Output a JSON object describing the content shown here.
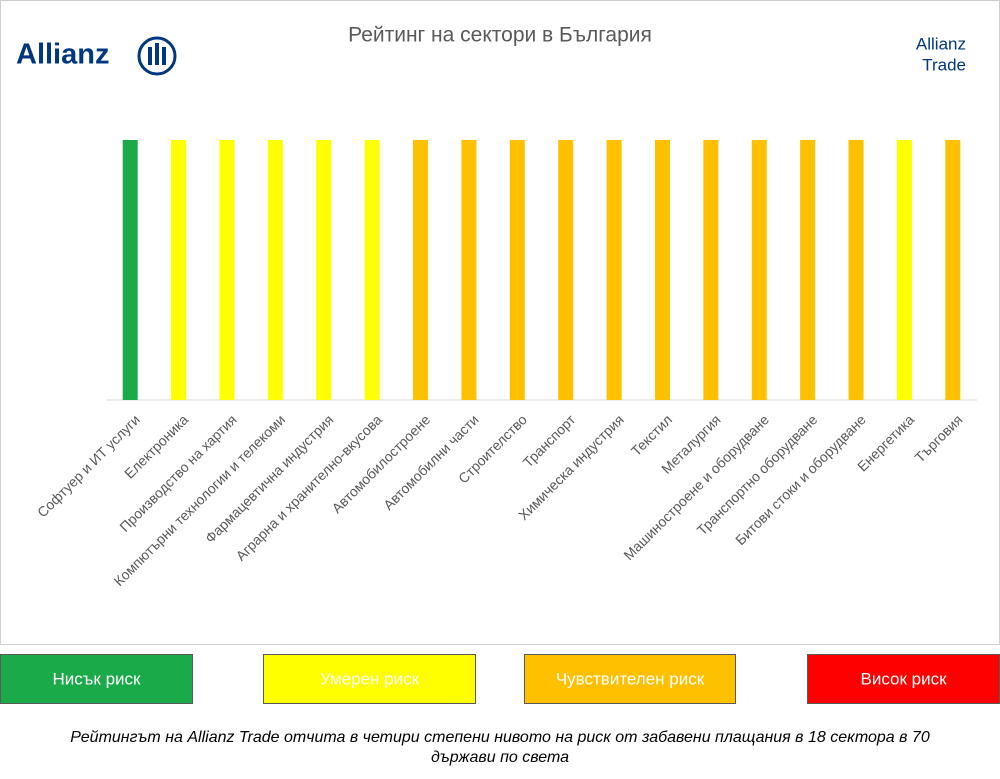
{
  "logo": "Allianz",
  "brand": [
    "Allianz",
    "Trade"
  ],
  "chart_data": {
    "type": "bar",
    "title": "Рейтинг на сектори  в България",
    "categories": [
      "Софтуер и ИТ услуги",
      "Електроника",
      "Производство на хартия",
      "Компютърни технологии и телекоми",
      "Фармацевтична индустрия",
      "Аграрна и хранително-вкусова",
      "Автомобилостроене",
      "Автомобилни части",
      "Строителство",
      "Транспорт",
      "Химическа индустрия",
      "Текстил",
      "Металургия",
      "Машиностроене и оборудване",
      "Транспортно оборудване",
      "Битови стоки и оборудване",
      "Енергетика",
      "Търговия"
    ],
    "values": [
      1,
      1,
      1,
      1,
      1,
      1,
      1,
      1,
      1,
      1,
      1,
      1,
      1,
      1,
      1,
      1,
      1,
      1
    ],
    "colors": [
      "#1aaa4a",
      "#ffff00",
      "#ffff00",
      "#ffff00",
      "#ffff00",
      "#ffff00",
      "#ffc000",
      "#ffc000",
      "#ffc000",
      "#ffc000",
      "#ffc000",
      "#ffc000",
      "#ffc000",
      "#ffc000",
      "#ffc000",
      "#ffc000",
      "#ffff00",
      "#ffc000"
    ],
    "ylim": [
      0,
      1
    ],
    "legend": [
      {
        "name": "Нисък риск",
        "color": "#1aaa4a"
      },
      {
        "name": "Умерен риск",
        "color": "#ffff00"
      },
      {
        "name": "Чувствителен риск",
        "color": "#ffc000"
      },
      {
        "name": "Висок риск",
        "color": "#ff0000"
      }
    ]
  },
  "caption": "Рейтингът на Allianz Trade отчита в четири степени нивото на риск от забавени плащания в 18 сектора в 70 държави по света"
}
